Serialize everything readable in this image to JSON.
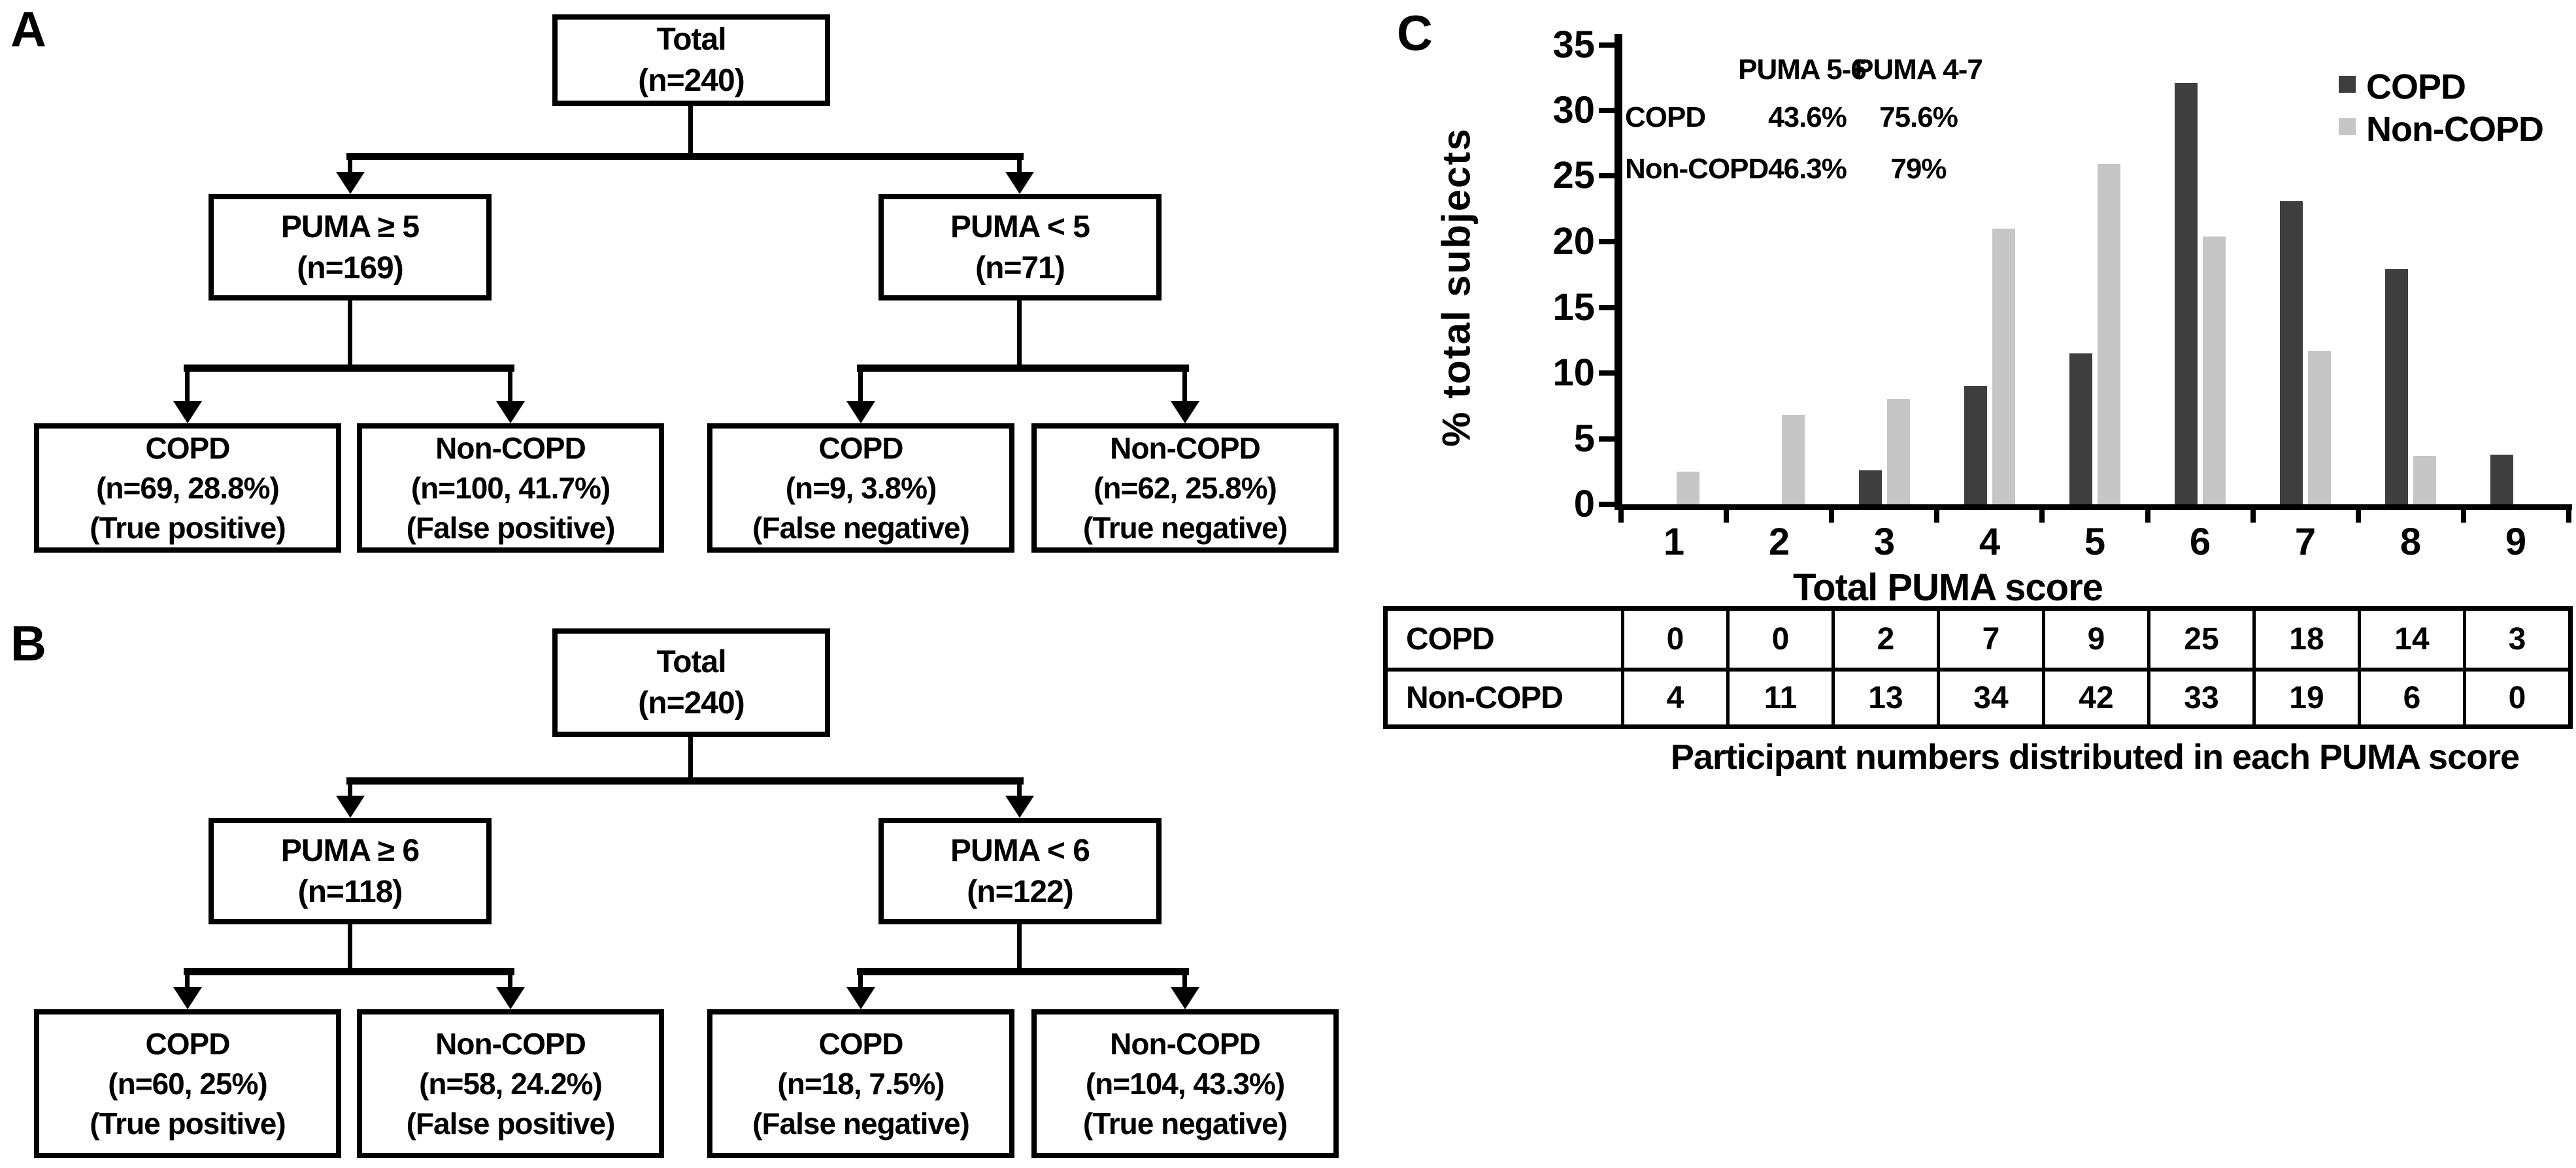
{
  "panels": {
    "a": {
      "label": "A",
      "root": [
        "Total",
        "(n=240)"
      ],
      "branches": [
        [
          "PUMA ≥ 5",
          "(n=169)"
        ],
        [
          "PUMA < 5",
          "(n=71)"
        ]
      ],
      "leaves": [
        [
          "COPD",
          "(n=69, 28.8%)",
          "(True positive)"
        ],
        [
          "Non-COPD",
          "(n=100, 41.7%)",
          "(False positive)"
        ],
        [
          "COPD",
          "(n=9, 3.8%)",
          "(False negative)"
        ],
        [
          "Non-COPD",
          "(n=62, 25.8%)",
          "(True negative)"
        ]
      ]
    },
    "b": {
      "label": "B",
      "root": [
        "Total",
        "(n=240)"
      ],
      "branches": [
        [
          "PUMA ≥ 6",
          "(n=118)"
        ],
        [
          "PUMA < 6",
          "(n=122)"
        ]
      ],
      "leaves": [
        [
          "COPD",
          "(n=60, 25%)",
          "(True positive)"
        ],
        [
          "Non-COPD",
          "(n=58, 24.2%)",
          "(False positive)"
        ],
        [
          "COPD",
          "(n=18, 7.5%)",
          "(False negative)"
        ],
        [
          "Non-COPD",
          "(n=104, 43.3%)",
          "(True negative)"
        ]
      ]
    },
    "c": {
      "label": "C",
      "ylabel": "% total subjects",
      "xlabel": "Total PUMA score",
      "yticks": [
        0,
        5,
        10,
        15,
        20,
        25,
        30,
        35
      ],
      "annotation": {
        "header": [
          "PUMA 5-6",
          "PUMA 4-7"
        ],
        "rows": [
          {
            "label": "COPD",
            "v1": "43.6%",
            "v2": "75.6%"
          },
          {
            "label": "Non-COPD",
            "v1": "46.3%",
            "v2": "79%"
          }
        ]
      },
      "legend": [
        {
          "label": "COPD",
          "color": "#3e3e3e"
        },
        {
          "label": "Non-COPD",
          "color": "#c6c6c6"
        }
      ],
      "caption": "Participant numbers distributed in each PUMA score"
    }
  },
  "chart_data": {
    "type": "bar",
    "title": "",
    "categories": [
      "1",
      "2",
      "3",
      "4",
      "5",
      "6",
      "7",
      "8",
      "9"
    ],
    "series": [
      {
        "name": "COPD",
        "color": "#3e3e3e",
        "values": [
          0,
          0,
          2.6,
          9.0,
          11.5,
          32.1,
          23.1,
          17.9,
          3.8
        ],
        "counts": [
          0,
          0,
          2,
          7,
          9,
          25,
          18,
          14,
          3
        ]
      },
      {
        "name": "Non-COPD",
        "color": "#c6c6c6",
        "values": [
          2.5,
          6.8,
          8.0,
          21.0,
          25.9,
          20.4,
          11.7,
          3.7,
          0
        ],
        "counts": [
          4,
          11,
          13,
          34,
          42,
          33,
          19,
          6,
          0
        ]
      }
    ],
    "xlabel": "Total PUMA score",
    "ylabel": "% total subjects",
    "ylim": [
      0,
      35
    ],
    "grid": false,
    "legend_position": "upper right"
  }
}
